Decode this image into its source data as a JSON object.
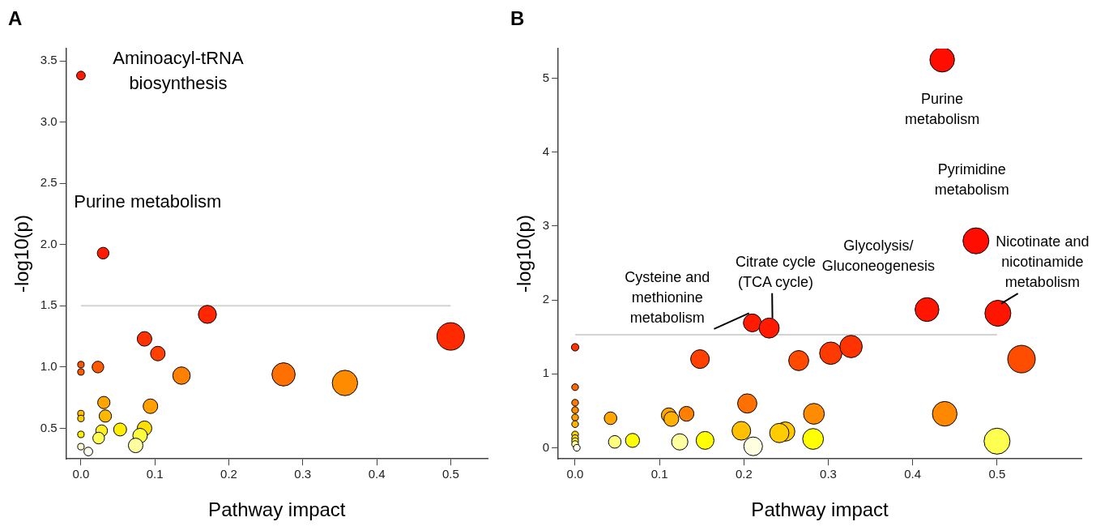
{
  "chart_data": [
    {
      "type": "bubble",
      "title": "A",
      "xlabel": "Pathway impact",
      "ylabel": "-log10(p)",
      "x": [
        0,
        0.03,
        0.171,
        0.5,
        0.086,
        0.104,
        0,
        0,
        0.023,
        0.136,
        0.274,
        0.357,
        0.031,
        0.094,
        0,
        0,
        0.033,
        0.053,
        0.086,
        0.028,
        0,
        0.024,
        0.08,
        0.074,
        0,
        0.01
      ],
      "values": [
        3.38,
        1.93,
        1.43,
        1.25,
        1.23,
        1.11,
        1.02,
        0.96,
        1.0,
        0.93,
        0.94,
        0.87,
        0.71,
        0.68,
        0.62,
        0.58,
        0.6,
        0.49,
        0.5,
        0.48,
        0.45,
        0.42,
        0.44,
        0.36,
        0.35,
        0.31
      ],
      "sizes": [
        0.1,
        0.18,
        0.43,
        1,
        0.28,
        0.28,
        0.056,
        0.056,
        0.18,
        0.4,
        0.71,
        0.85,
        0.2,
        0.28,
        0.056,
        0.056,
        0.2,
        0.22,
        0.28,
        0.18,
        0.056,
        0.18,
        0.28,
        0.28,
        0.056,
        0.1
      ],
      "colors": [
        "#ff1a00",
        "#ff1a00",
        "#ff2600",
        "#ff2a00",
        "#ff3300",
        "#ff4000",
        "#ff5500",
        "#ff5c00",
        "#ff5a00",
        "#ff7f00",
        "#ff7000",
        "#ff8c00",
        "#ffa500",
        "#ffa000",
        "#ffc000",
        "#ffcc00",
        "#ffb800",
        "#ffee00",
        "#ffe000",
        "#ffee20",
        "#ffee00",
        "#ffff55",
        "#ffff40",
        "#ffffa0",
        "#ffffd0",
        "#fffff0"
      ],
      "xlim": [
        -0.02,
        0.55
      ],
      "ylim": [
        0.25,
        3.6
      ],
      "xticks": [
        {
          "value": 0,
          "label": "0.0"
        },
        0.1,
        0.2,
        0.3,
        0.4,
        0.5
      ],
      "yticks": [
        0.5,
        {
          "value": 1,
          "label": "1.0"
        },
        1.5,
        {
          "value": 2,
          "label": "2.0"
        },
        2.5,
        {
          "value": 3,
          "label": "3.0"
        },
        3.5
      ],
      "grid": false,
      "ref_lines": [
        {
          "axis": "y",
          "value": 1.5,
          "color": "#d3d3d3"
        }
      ],
      "annotations": [
        {
          "text": "Aminoacyl-tRNA biosynthesis",
          "x": 0,
          "y": 3.38
        },
        {
          "text": "Purine metabolism",
          "x": 0.03,
          "y": 1.93
        }
      ]
    },
    {
      "type": "bubble",
      "title": "B",
      "xlabel": "Pathway impact",
      "ylabel": "-log10(p)",
      "x": [
        0.435,
        0.475,
        0.417,
        0.501,
        0.21,
        0.23,
        0,
        0.148,
        0.265,
        0.303,
        0.327,
        0.529,
        0,
        0.204,
        0,
        0,
        0,
        0,
        0.042,
        0.111,
        0.132,
        0.114,
        0.283,
        0.438,
        0.197,
        0.249,
        0.242,
        0,
        0,
        0,
        0,
        0.002,
        0.047,
        0.068,
        0.124,
        0.154,
        0.211,
        0.282,
        0.5
      ],
      "values": [
        5.25,
        2.8,
        1.87,
        1.82,
        1.69,
        1.62,
        1.36,
        1.2,
        1.18,
        1.28,
        1.37,
        1.2,
        0.82,
        0.6,
        0.61,
        0.51,
        0.41,
        0.32,
        0.4,
        0.44,
        0.46,
        0.39,
        0.46,
        0.46,
        0.23,
        0.22,
        0.2,
        0.18,
        0.13,
        0.09,
        0.05,
        0,
        0.08,
        0.1,
        0.08,
        0.1,
        0.02,
        0.12,
        0.09
      ],
      "sizes": [
        0.8,
        0.89,
        0.75,
        0.89,
        0.42,
        0.53,
        0.073,
        0.46,
        0.53,
        0.66,
        0.66,
        1,
        0.06,
        0.49,
        0.06,
        0.06,
        0.06,
        0.06,
        0.21,
        0.29,
        0.29,
        0.29,
        0.57,
        0.8,
        0.46,
        0.49,
        0.49,
        0.06,
        0.06,
        0.06,
        0.06,
        0.06,
        0.21,
        0.26,
        0.35,
        0.42,
        0.46,
        0.57,
        0.89
      ],
      "colors": [
        "#ff0d00",
        "#ff0d00",
        "#ff1500",
        "#ff1500",
        "#ff1a00",
        "#ff1a00",
        "#ff3300",
        "#ff4000",
        "#ff4a00",
        "#ff3a00",
        "#ff3300",
        "#ff4d00",
        "#ff6600",
        "#ff7000",
        "#ff7a00",
        "#ff8c00",
        "#ffa000",
        "#ffb400",
        "#ffa500",
        "#ffa500",
        "#ff8000",
        "#ffb000",
        "#ff8c00",
        "#ff8800",
        "#ffc000",
        "#ffc800",
        "#ffcc00",
        "#ffd000",
        "#ffe000",
        "#ffee30",
        "#ffffa0",
        "#fffff0",
        "#ffff80",
        "#ffff00",
        "#ffffa0",
        "#ffff00",
        "#ffffe0",
        "#ffff00",
        "#ffff50"
      ],
      "xlim": [
        -0.02,
        0.6
      ],
      "ylim": [
        -0.15,
        5.4
      ],
      "xticks": [
        {
          "value": 0,
          "label": "0.0"
        },
        0.1,
        0.2,
        0.3,
        0.4,
        0.5
      ],
      "yticks": [
        0,
        1,
        2,
        3,
        4,
        5
      ],
      "grid": false,
      "ref_lines": [
        {
          "axis": "y",
          "value": 1.53,
          "color": "#d3d3d3"
        }
      ],
      "annotations": [
        {
          "text": "Purine metabolism",
          "x": 0.435,
          "y": 5.25
        },
        {
          "text": "Pyrimidine metabolism",
          "x": 0.475,
          "y": 2.8
        },
        {
          "text": "Glycolysis/ Gluconeogenesis",
          "x": 0.417,
          "y": 1.87
        },
        {
          "text": "Nicotinate and nicotinamide metabolism",
          "x": 0.501,
          "y": 1.82
        },
        {
          "text": "Cysteine and methionine metabolism",
          "x": 0.21,
          "y": 1.69
        },
        {
          "text": "Citrate cycle (TCA cycle)",
          "x": 0.23,
          "y": 1.62
        }
      ]
    }
  ]
}
